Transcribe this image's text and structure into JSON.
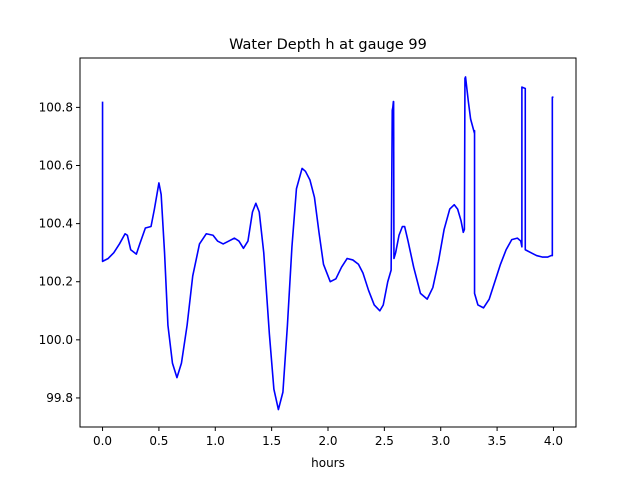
{
  "chart_data": {
    "type": "line",
    "title": "Water Depth h at gauge 99",
    "xlabel": "hours",
    "ylabel": "",
    "xlim": [
      -0.2,
      4.2
    ],
    "ylim": [
      99.7,
      100.97
    ],
    "xticks": [
      0.0,
      0.5,
      1.0,
      1.5,
      2.0,
      2.5,
      3.0,
      3.5,
      4.0
    ],
    "xtick_labels": [
      "0.0",
      "0.5",
      "1.0",
      "1.5",
      "2.0",
      "2.5",
      "3.0",
      "3.5",
      "4.0"
    ],
    "yticks": [
      99.8,
      100.0,
      100.2,
      100.4,
      100.6,
      100.8
    ],
    "ytick_labels": [
      "99.8",
      "100.0",
      "100.2",
      "100.4",
      "100.6",
      "100.8"
    ],
    "grid": false,
    "line_color": "#0000ff",
    "series": [
      {
        "x": [
          0.0,
          0.0,
          0.0,
          0.05,
          0.1,
          0.15,
          0.2,
          0.22,
          0.25,
          0.3,
          0.33,
          0.38,
          0.43,
          0.46,
          0.5,
          0.52,
          0.55,
          0.58,
          0.62,
          0.66,
          0.7,
          0.75,
          0.8,
          0.86,
          0.92,
          0.98,
          1.02,
          1.07,
          1.12,
          1.17,
          1.21,
          1.25,
          1.29,
          1.33,
          1.36,
          1.39,
          1.43,
          1.48,
          1.52,
          1.56,
          1.6,
          1.64,
          1.68,
          1.72,
          1.77,
          1.8,
          1.84,
          1.88,
          1.92,
          1.96,
          2.02,
          2.07,
          2.12,
          2.17,
          2.22,
          2.27,
          2.31,
          2.36,
          2.41,
          2.46,
          2.49,
          2.53,
          2.56,
          2.57,
          2.575,
          2.58,
          2.582,
          2.585,
          2.6,
          2.63,
          2.66,
          2.68,
          2.71,
          2.76,
          2.82,
          2.88,
          2.93,
          2.98,
          3.03,
          3.08,
          3.12,
          3.15,
          3.18,
          3.2,
          3.21,
          3.215,
          3.22,
          3.245,
          3.265,
          3.3,
          3.3,
          3.3,
          3.33,
          3.38,
          3.43,
          3.48,
          3.53,
          3.58,
          3.63,
          3.68,
          3.71,
          3.72,
          3.72,
          3.75,
          3.75,
          3.75,
          3.8,
          3.85,
          3.9,
          3.95,
          3.98,
          3.99,
          3.99,
          4.0
        ],
        "y": [
          100.82,
          100.27,
          100.27,
          100.28,
          100.3,
          100.33,
          100.365,
          100.36,
          100.31,
          100.295,
          100.33,
          100.385,
          100.39,
          100.45,
          100.54,
          100.5,
          100.3,
          100.05,
          99.92,
          99.87,
          99.92,
          100.05,
          100.22,
          100.33,
          100.365,
          100.36,
          100.34,
          100.33,
          100.34,
          100.35,
          100.34,
          100.315,
          100.34,
          100.44,
          100.47,
          100.44,
          100.3,
          100.02,
          99.83,
          99.76,
          99.82,
          100.05,
          100.32,
          100.52,
          100.59,
          100.58,
          100.55,
          100.49,
          100.37,
          100.26,
          100.2,
          100.21,
          100.25,
          100.28,
          100.275,
          100.26,
          100.23,
          100.17,
          100.12,
          100.1,
          100.12,
          100.2,
          100.24,
          100.79,
          100.8,
          100.82,
          100.82,
          100.28,
          100.3,
          100.36,
          100.39,
          100.39,
          100.34,
          100.25,
          100.16,
          100.14,
          100.18,
          100.27,
          100.38,
          100.45,
          100.465,
          100.45,
          100.41,
          100.37,
          100.38,
          100.9,
          100.905,
          100.82,
          100.76,
          100.71,
          100.72,
          100.16,
          100.12,
          100.11,
          100.14,
          100.2,
          100.26,
          100.31,
          100.345,
          100.35,
          100.34,
          100.32,
          100.87,
          100.865,
          100.86,
          100.31,
          100.3,
          100.29,
          100.285,
          100.285,
          100.29,
          100.29,
          100.835,
          100.835
        ]
      }
    ]
  }
}
